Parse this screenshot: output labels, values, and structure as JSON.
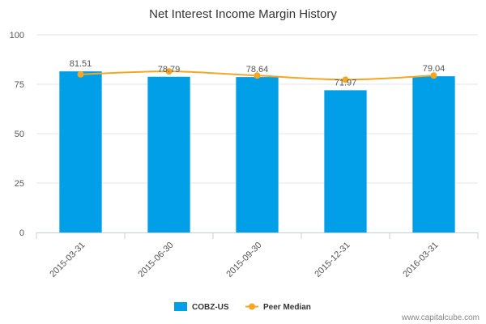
{
  "chart_data": {
    "type": "bar",
    "title": "Net Interest Income Margin History",
    "xlabel": "",
    "ylabel": "",
    "ylim": [
      0,
      100
    ],
    "yticks": [
      "0",
      "25",
      "50",
      "75",
      "100"
    ],
    "categories": [
      "2015-03-31",
      "2015-06-30",
      "2015-09-30",
      "2015-12-31",
      "2016-03-31"
    ],
    "series": [
      {
        "name": "COBZ-US",
        "type": "bar",
        "color": "#009fe8",
        "values": [
          81.51,
          78.79,
          78.64,
          71.97,
          79.04
        ],
        "labels": [
          "81.51",
          "78.79",
          "78.64",
          "71.97",
          "79.04"
        ]
      },
      {
        "name": "Peer Median",
        "type": "line",
        "color": "#f5a623",
        "values": [
          80.0,
          81.5,
          79.4,
          77.3,
          79.4
        ]
      }
    ],
    "legend": "bottom-center"
  },
  "credit": "www.capitalcube.com"
}
